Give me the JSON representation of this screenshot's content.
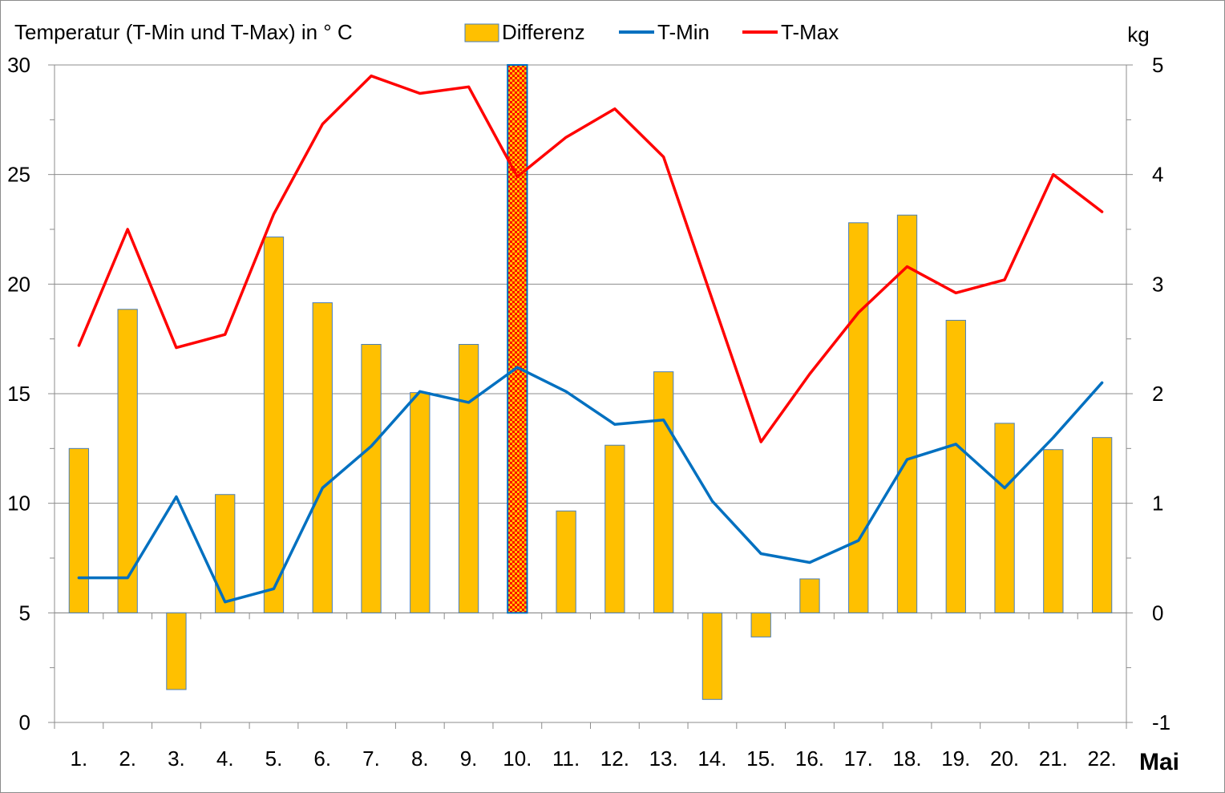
{
  "chart_data": {
    "type": "bar+line",
    "title": "Temperatur (T-Min und T-Max) in ° C",
    "right_axis_label": "kg",
    "xlabel": "Mai",
    "categories": [
      "1.",
      "2.",
      "3.",
      "4.",
      "5.",
      "6.",
      "7.",
      "8.",
      "9.",
      "10.",
      "11.",
      "12.",
      "13.",
      "14.",
      "15.",
      "16.",
      "17.",
      "18.",
      "19.",
      "20.",
      "21.",
      "22."
    ],
    "ylim_left": [
      0,
      30
    ],
    "yticks_left": [
      "0",
      "5",
      "10",
      "15",
      "20",
      "25",
      "30"
    ],
    "ylim_right": [
      -1,
      5
    ],
    "yticks_right": [
      "-1",
      "0",
      "1",
      "2",
      "3",
      "4",
      "5"
    ],
    "legend_position": "top",
    "grid": "horizontal",
    "highlight_category_index": 9,
    "series": [
      {
        "name": "Differenz",
        "type": "bar",
        "axis": "right",
        "color": "#FFC000",
        "border_color": "#4A7EBB",
        "values": [
          1.5,
          2.77,
          -0.7,
          1.08,
          3.43,
          2.83,
          2.45,
          2.01,
          2.45,
          5.0,
          0.93,
          1.53,
          2.2,
          -0.79,
          -0.22,
          0.31,
          3.56,
          3.63,
          2.67,
          1.73,
          1.49,
          1.6
        ]
      },
      {
        "name": "T-Min",
        "type": "line",
        "axis": "left",
        "color": "#0070C0",
        "values": [
          6.6,
          6.6,
          10.3,
          5.5,
          6.1,
          10.7,
          12.6,
          15.1,
          14.6,
          16.2,
          15.1,
          13.6,
          13.8,
          10.1,
          7.7,
          7.3,
          8.3,
          12.0,
          12.7,
          10.7,
          13.0,
          15.5
        ]
      },
      {
        "name": "T-Max",
        "type": "line",
        "axis": "left",
        "color": "#FF0000",
        "values": [
          17.2,
          22.5,
          17.1,
          17.7,
          23.2,
          27.3,
          29.5,
          28.7,
          29.0,
          24.9,
          26.7,
          28.0,
          25.8,
          19.3,
          12.8,
          15.9,
          18.7,
          20.8,
          19.6,
          20.2,
          25.0,
          23.3
        ]
      }
    ]
  }
}
